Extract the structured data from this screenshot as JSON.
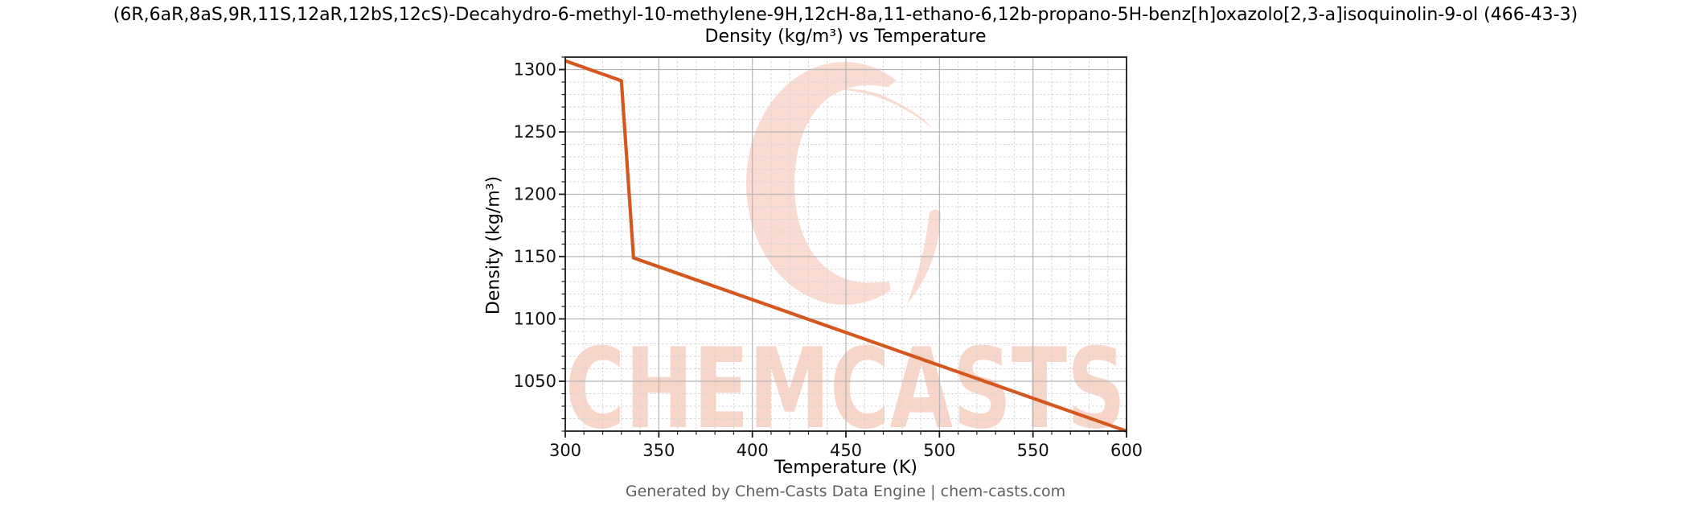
{
  "header": {
    "title_line1": "(6R,6aR,8aS,9R,11S,12aR,12bS,12cS)-Decahydro-6-methyl-10-methylene-9H,12cH-8a,11-ethano-6,12b-propano-5H-benz[h]oxazolo[2,3-a]isoquinolin-9-ol (466-43-3)",
    "title_line2": "Density (kg/m³) vs Temperature"
  },
  "footer": {
    "text": "Generated by Chem-Casts Data Engine | chem-casts.com"
  },
  "watermark": {
    "text": "CHEMCASTS",
    "text_color": "#f8d5c9",
    "logo_color": "#fadbd1"
  },
  "chart_data": {
    "type": "line",
    "title": "Density (kg/m³) vs Temperature",
    "xlabel": "Temperature (K)",
    "ylabel": "Density (kg/m³)",
    "xlim": [
      300,
      600
    ],
    "ylim": [
      1010,
      1310
    ],
    "x_major_ticks": [
      300,
      350,
      400,
      450,
      500,
      550,
      600
    ],
    "y_major_ticks": [
      1050,
      1100,
      1150,
      1200,
      1250,
      1300
    ],
    "x_minor_step": 10,
    "y_minor_step": 10,
    "grid": {
      "major": true,
      "minor": true
    },
    "legend": "none",
    "line_color": "#d4581e",
    "series": [
      {
        "name": "Density (kg/m³)",
        "points": [
          [
            300,
            1307
          ],
          [
            330,
            1291
          ],
          [
            336.5,
            1149
          ],
          [
            600,
            1010
          ]
        ]
      }
    ]
  }
}
